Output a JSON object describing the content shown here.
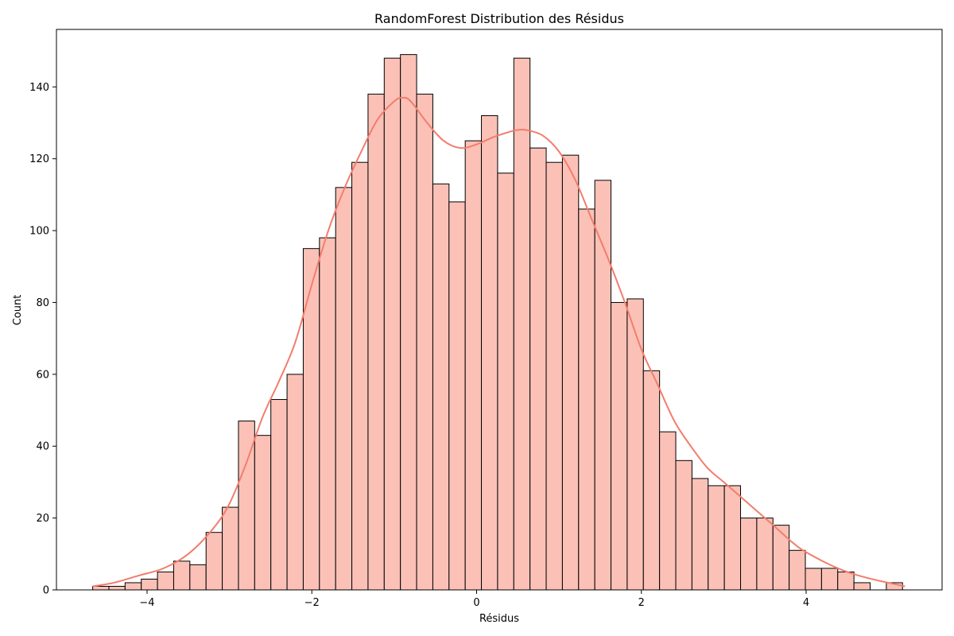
{
  "chart_data": {
    "type": "bar",
    "title": "RandomForest Distribution des Résidus",
    "xlabel": "Résidus",
    "ylabel": "Count",
    "xlim": [
      -5.1,
      5.65
    ],
    "ylim": [
      0,
      156
    ],
    "xticks": [
      -4,
      -2,
      0,
      2,
      4
    ],
    "xtick_labels": [
      "−4",
      "−2",
      "0",
      "2",
      "4"
    ],
    "yticks": [
      0,
      20,
      40,
      60,
      80,
      100,
      120,
      140
    ],
    "yticks_labels": [
      "0",
      "20",
      "40",
      "60",
      "80",
      "100",
      "120",
      "140"
    ],
    "bin_start": -4.66,
    "bin_width": 0.1966,
    "values": [
      1,
      1,
      2,
      3,
      5,
      8,
      7,
      16,
      23,
      47,
      43,
      53,
      60,
      95,
      98,
      112,
      119,
      138,
      148,
      149,
      138,
      113,
      108,
      125,
      132,
      116,
      148,
      123,
      119,
      121,
      106,
      114,
      80,
      81,
      61,
      44,
      36,
      31,
      29,
      29,
      20,
      20,
      18,
      11,
      6,
      6,
      5,
      2,
      0,
      2
    ],
    "kde": {
      "x": [
        -4.66,
        -4.4,
        -4.1,
        -3.8,
        -3.5,
        -3.2,
        -3.0,
        -2.8,
        -2.6,
        -2.4,
        -2.2,
        -2.0,
        -1.8,
        -1.6,
        -1.4,
        -1.2,
        -1.0,
        -0.9,
        -0.8,
        -0.6,
        -0.4,
        -0.2,
        0.0,
        0.2,
        0.4,
        0.5,
        0.6,
        0.8,
        1.0,
        1.2,
        1.4,
        1.6,
        1.8,
        2.0,
        2.2,
        2.4,
        2.6,
        2.8,
        3.0,
        3.3,
        3.6,
        3.9,
        4.2,
        4.5,
        4.8,
        5.2
      ],
      "y": [
        1,
        2,
        4,
        6,
        10,
        17,
        24,
        35,
        48,
        58,
        69,
        85,
        100,
        112,
        122,
        131,
        136,
        137,
        136,
        130,
        125,
        123,
        124,
        126,
        127.5,
        128,
        128,
        126.5,
        122,
        114,
        103,
        92,
        80,
        67,
        57,
        47,
        40,
        34,
        30,
        24,
        18,
        12,
        8,
        5,
        3,
        1
      ]
    },
    "bar_fill": "#fbc1b7",
    "bar_edge": "#000000",
    "kde_color": "#f27d6d",
    "grid": false,
    "legend": "none"
  }
}
